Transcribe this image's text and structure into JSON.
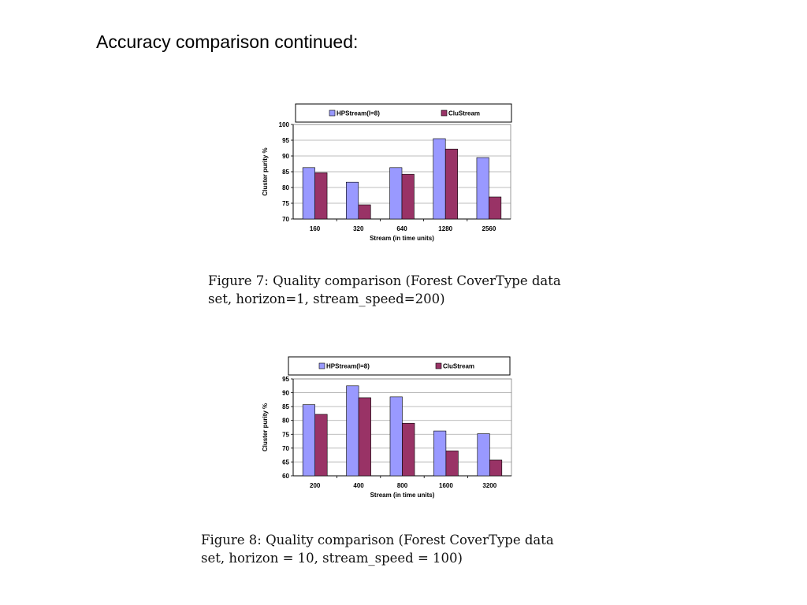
{
  "slide": {
    "title": "Accuracy comparison continued:"
  },
  "chart_data": [
    {
      "type": "bar",
      "categories": [
        "160",
        "320",
        "640",
        "1280",
        "2560"
      ],
      "series": [
        {
          "name": "HPStream(l=8)",
          "values": [
            86.3,
            81.7,
            86.3,
            95.5,
            89.5
          ],
          "color": "#9999ff"
        },
        {
          "name": "CluStream",
          "values": [
            84.7,
            74.5,
            84.2,
            92.2,
            77.0
          ],
          "color": "#993366"
        }
      ],
      "xlabel": "Stream (in time units)",
      "ylabel": "Cluster purity %",
      "ylim": [
        70,
        100
      ],
      "yticks": [
        "70",
        "75",
        "80",
        "85",
        "90",
        "95",
        "100"
      ],
      "grid": true,
      "legend": "top",
      "caption": [
        "Figure 7: Quality comparison (Forest CoverType data",
        "set, horizon=1, stream_speed=200)"
      ]
    },
    {
      "type": "bar",
      "categories": [
        "200",
        "400",
        "800",
        "1600",
        "3200"
      ],
      "series": [
        {
          "name": "HPStream(l=8)",
          "values": [
            85.7,
            92.5,
            88.5,
            76.2,
            75.2
          ],
          "color": "#9999ff"
        },
        {
          "name": "CluStream",
          "values": [
            82.2,
            88.2,
            79.0,
            69.0,
            65.7
          ],
          "color": "#993366"
        }
      ],
      "xlabel": "Stream (in time units)",
      "ylabel": "Cluster purity %",
      "ylim": [
        60,
        95
      ],
      "yticks": [
        "60",
        "65",
        "70",
        "75",
        "80",
        "85",
        "90",
        "95"
      ],
      "grid": true,
      "legend": "top",
      "caption": [
        "Figure 8: Quality comparison (Forest CoverType data",
        "set, horizon = 10, stream_speed = 100)"
      ]
    }
  ]
}
